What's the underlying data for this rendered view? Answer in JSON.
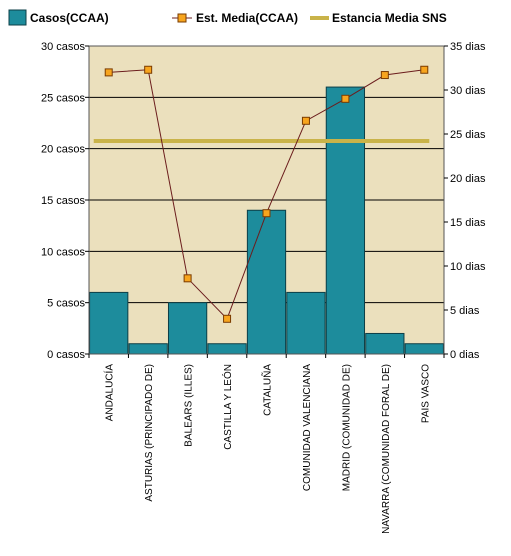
{
  "chart_data": {
    "type": "bar",
    "categories": [
      "ANDALUCÍA",
      "ASTURIAS (PRINCIPADO DE)",
      "BALEARS (ILLES)",
      "CASTILLA Y LEÓN",
      "CATALUÑA",
      "COMUNIDAD VALENCIANA",
      "MADRID (COMUNIDAD DE)",
      "NAVARRA (COMUNIDAD FORAL DE)",
      "PAIS VASCO"
    ],
    "series": [
      {
        "name": "Casos(CCAA)",
        "type": "bar",
        "axis": "left",
        "values": [
          6,
          1,
          5,
          1,
          14,
          6,
          26,
          2,
          1
        ]
      },
      {
        "name": "Est.  Media(CCAA)",
        "type": "line",
        "axis": "right",
        "values": [
          32,
          32.3,
          8.6,
          4,
          16,
          26.5,
          29,
          31.7,
          32.3
        ]
      },
      {
        "name": "Estancia Media SNS",
        "type": "reference",
        "axis": "right",
        "value": 24.2
      }
    ],
    "y_left": {
      "ylim": [
        0,
        30
      ],
      "ticks": [
        0,
        5,
        10,
        15,
        20,
        25,
        30
      ],
      "tick_labels": [
        "0 casos",
        "5 casos",
        "10 casos",
        "15 casos",
        "20 casos",
        "25 casos",
        "30 casos"
      ]
    },
    "y_right": {
      "ylim": [
        0,
        35
      ],
      "ticks": [
        0,
        5,
        10,
        15,
        20,
        25,
        30,
        35
      ],
      "tick_labels": [
        "0 dias",
        "5 dias",
        "10 dias",
        "15 dias",
        "20 dias",
        "25 dias",
        "30 dias",
        "35 dias"
      ]
    },
    "grid": true,
    "legend_position": "top-left",
    "colors": {
      "bars": "#1d8c9c",
      "bar_stroke": "#0d3f47",
      "line": "#6b1d1d",
      "marker_fill": "#f7a51e",
      "marker_stroke": "#7a3b00",
      "reference": "#c9b349",
      "plot_bg": "#ebe0bd",
      "gridline": "#000000"
    }
  }
}
